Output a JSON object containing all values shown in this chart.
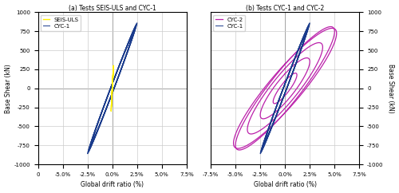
{
  "fig_width": 5.0,
  "fig_height": 2.42,
  "dpi": 100,
  "subplot_a": {
    "title": "(a) Tests SEIS-ULS and CYC-1",
    "xlabel": "Global drift ratio (%)",
    "ylabel": "Base Shear (kN)",
    "xlim": [
      0,
      7.5
    ],
    "xlim_data": [
      -7.5,
      7.5
    ],
    "ylim": [
      -1000,
      1000
    ],
    "xticks": [
      0,
      -5.0,
      -2.5,
      0.0,
      2.5,
      5.0,
      7.5
    ],
    "xtick_labels": [
      "0",
      "-5.0%",
      "-2.5%",
      "0.0%",
      "2.5%",
      "5.0%",
      "7.5%"
    ],
    "yticks": [
      -1000,
      -750,
      -500,
      -250,
      0,
      250,
      500,
      750,
      1000
    ],
    "legend": [
      "SEIS-ULS",
      "CYC-1"
    ],
    "colors": {
      "SEIS-ULS": "#FFEE00",
      "CYC-1": "#1A3B8C"
    }
  },
  "subplot_b": {
    "title": "(b) Tests CYC-1 and CYC-2",
    "xlabel": "Global drift ratio (%)",
    "ylabel": "Base Shear (kN)",
    "xlim": [
      -7.5,
      7.5
    ],
    "ylim": [
      -1000,
      1000
    ],
    "xticks": [
      -7.5,
      -5.0,
      -2.5,
      0.0,
      2.5,
      5.0,
      7.5
    ],
    "yticks": [
      -1000,
      -750,
      -500,
      -250,
      0,
      250,
      500,
      750,
      1000
    ],
    "legend": [
      "CYC-1",
      "CYC-2"
    ],
    "colors": {
      "CYC-1": "#1A3B8C",
      "CYC-2": "#BB20AA"
    }
  },
  "grid_color": "#CCCCCC",
  "grid_linewidth": 0.5,
  "line_linewidth": 0.7,
  "seis_uls_linewidth": 1.0,
  "cyc2_linewidth": 0.9
}
